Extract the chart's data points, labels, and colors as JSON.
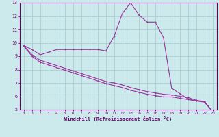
{
  "xlabel": "Windchill (Refroidissement éolien,°C)",
  "bg_color": "#cce9ec",
  "line_color": "#993399",
  "grid_color": "#aacdd4",
  "axis_color": "#660066",
  "text_color": "#660066",
  "xlim": [
    -0.5,
    23.5
  ],
  "ylim": [
    5,
    13
  ],
  "xticks": [
    0,
    1,
    2,
    3,
    4,
    5,
    6,
    7,
    8,
    9,
    10,
    11,
    12,
    13,
    14,
    15,
    16,
    17,
    18,
    19,
    20,
    21,
    22,
    23
  ],
  "yticks": [
    5,
    6,
    7,
    8,
    9,
    10,
    11,
    12,
    13
  ],
  "line1_x": [
    0,
    1,
    2,
    3,
    4,
    5,
    6,
    7,
    8,
    9,
    10,
    11,
    12,
    13,
    14,
    15,
    16,
    17,
    18,
    19,
    20,
    21,
    22,
    23
  ],
  "line1_y": [
    9.8,
    9.5,
    9.1,
    9.3,
    9.5,
    9.5,
    9.5,
    9.5,
    9.5,
    9.5,
    9.4,
    10.5,
    12.2,
    13.0,
    12.1,
    11.55,
    11.55,
    10.4,
    6.6,
    6.2,
    5.8,
    5.65,
    5.6,
    4.85
  ],
  "line2_x": [
    0,
    1,
    2,
    3,
    4,
    5,
    6,
    7,
    8,
    9,
    10,
    11,
    12,
    13,
    14,
    15,
    16,
    17,
    18,
    19,
    20,
    21,
    22,
    23
  ],
  "line2_y": [
    9.8,
    9.1,
    8.7,
    8.5,
    8.3,
    8.1,
    7.9,
    7.7,
    7.5,
    7.3,
    7.1,
    7.0,
    6.85,
    6.65,
    6.5,
    6.35,
    6.25,
    6.15,
    6.1,
    6.0,
    5.9,
    5.7,
    5.6,
    4.85
  ],
  "line3_x": [
    0,
    1,
    2,
    3,
    4,
    5,
    6,
    7,
    8,
    9,
    10,
    11,
    12,
    13,
    14,
    15,
    16,
    17,
    18,
    19,
    20,
    21,
    22,
    23
  ],
  "line3_y": [
    9.75,
    9.0,
    8.55,
    8.35,
    8.15,
    7.95,
    7.75,
    7.55,
    7.35,
    7.15,
    6.95,
    6.8,
    6.65,
    6.45,
    6.3,
    6.15,
    6.05,
    5.95,
    5.95,
    5.85,
    5.75,
    5.65,
    5.55,
    4.85
  ]
}
